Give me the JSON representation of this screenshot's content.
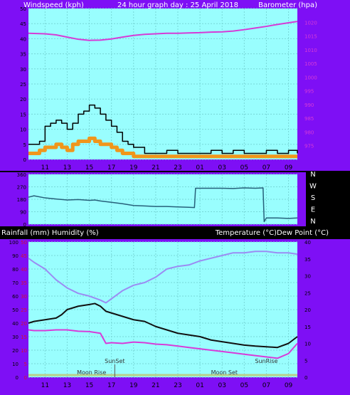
{
  "header": {
    "left_label": "Windspeed (kph)",
    "center_label": "24 hour graph day : 25 April 2018",
    "right_label": "Barometer (hpa)"
  },
  "mid_header": {
    "left_label": "Rainfall (mm)  Humidity (%)",
    "right_label": "Temperature (°C)Dew Point (°C)"
  },
  "compass": [
    "N",
    "W",
    "S",
    "E",
    "N"
  ],
  "x_ticks": [
    "11",
    "13",
    "15",
    "17",
    "19",
    "21",
    "23",
    "01",
    "03",
    "05",
    "07",
    "09"
  ],
  "colors": {
    "frame": "#7e0ff5",
    "plot_bg": "#99fefe",
    "grid": "#78d8d8",
    "barometer": "#d63bd6",
    "humidity": "#9b8cf3",
    "temperature": "#111111",
    "dewpoint": "#d83bd8",
    "wind_gust": "#000000",
    "wind_avg": "#f0961b",
    "wind_dir": "#27607a",
    "rain": "#b8d08a"
  },
  "chart_data": [
    {
      "type": "line",
      "title": "24 hour graph day : 25 April 2018",
      "x_ticks": [
        "11",
        "13",
        "15",
        "17",
        "19",
        "21",
        "23",
        "01",
        "03",
        "05",
        "07",
        "09"
      ],
      "left_axis": {
        "label": "Windspeed (kph)",
        "ylim": [
          0,
          50
        ],
        "ticks": [
          0,
          5,
          10,
          15,
          20,
          25,
          30,
          35,
          40,
          45,
          50
        ]
      },
      "right_axis": {
        "label": "Barometer (hpa)",
        "ylim": [
          970,
          1025
        ],
        "ticks": [
          975,
          980,
          985,
          990,
          995,
          1000,
          1005,
          1010,
          1015,
          1020
        ]
      },
      "series": [
        {
          "name": "Barometer",
          "axis": "right",
          "x": [
            9.5,
            11,
            12,
            13,
            14,
            15,
            16,
            17,
            18,
            19,
            20,
            21,
            22,
            23,
            24,
            25,
            26,
            27,
            28,
            29,
            30,
            31,
            32,
            33,
            33.8
          ],
          "values": [
            1016,
            1015.8,
            1015.4,
            1014.6,
            1013.8,
            1013.4,
            1013.5,
            1013.9,
            1014.6,
            1015.2,
            1015.6,
            1015.8,
            1016,
            1016,
            1016.1,
            1016.2,
            1016.4,
            1016.5,
            1016.8,
            1017.3,
            1017.9,
            1018.5,
            1019.2,
            1019.8,
            1020.3
          ]
        },
        {
          "name": "Wind gust",
          "axis": "left",
          "x": [
            9.5,
            10.5,
            11,
            11.5,
            12,
            12.5,
            13,
            13.5,
            14,
            14.5,
            15,
            15.5,
            16,
            16.5,
            17,
            17.5,
            18,
            18.5,
            19,
            20,
            21,
            22,
            23,
            24,
            25,
            26,
            27,
            28,
            29,
            30,
            31,
            32,
            33,
            33.8
          ],
          "values": [
            5,
            6,
            11,
            12,
            13,
            12,
            10,
            12,
            15,
            16,
            18,
            17,
            15,
            13,
            11,
            9,
            6,
            5,
            4,
            2,
            2,
            3,
            2,
            2,
            2,
            3,
            2,
            3,
            2,
            2,
            3,
            2,
            3,
            2
          ]
        },
        {
          "name": "Wind average",
          "axis": "left",
          "x": [
            9.5,
            10.5,
            11,
            11.5,
            12,
            12.5,
            13,
            13.5,
            14,
            14.5,
            15,
            15.5,
            16,
            16.5,
            17,
            17.5,
            18,
            18.5,
            19,
            20,
            21,
            22,
            23,
            24,
            25,
            26,
            27,
            28,
            29,
            30,
            31,
            32,
            33,
            33.8
          ],
          "values": [
            2,
            3,
            4,
            4,
            5,
            4,
            3,
            5,
            6,
            6,
            7,
            6,
            5,
            5,
            4,
            3,
            2,
            2,
            1,
            1,
            1,
            1,
            1,
            1,
            1,
            1,
            1,
            1,
            1,
            1,
            1,
            1,
            1,
            1
          ]
        }
      ]
    },
    {
      "type": "line",
      "left_axis": {
        "ylim": [
          0,
          360
        ],
        "ticks": [
          0,
          90,
          180,
          270,
          360
        ]
      },
      "series": [
        {
          "name": "Wind direction",
          "x": [
            9.5,
            10,
            11,
            12,
            13,
            14,
            15,
            15.5,
            16,
            17,
            18,
            19,
            20,
            21,
            22,
            23,
            24,
            24.5,
            24.6,
            27,
            28,
            29,
            30,
            30.7,
            30.8,
            31,
            32,
            33,
            33.8
          ],
          "values": [
            195,
            205,
            190,
            182,
            175,
            178,
            172,
            175,
            168,
            158,
            148,
            135,
            132,
            128,
            128,
            125,
            122,
            120,
            260,
            260,
            258,
            262,
            260,
            262,
            18,
            45,
            45,
            42,
            45
          ]
        }
      ]
    },
    {
      "type": "line",
      "x_ticks": [
        "11",
        "13",
        "15",
        "17",
        "19",
        "21",
        "23",
        "01",
        "03",
        "05",
        "07",
        "09"
      ],
      "left_axis": {
        "label": "Rainfall (mm)  Humidity (%)",
        "ylim": [
          0,
          100
        ],
        "ticks": [
          0,
          10,
          20,
          30,
          40,
          50,
          60,
          70,
          80,
          90,
          100
        ]
      },
      "left_inner_axis": {
        "ylim": [
          0,
          50
        ],
        "ticks": [
          0,
          5,
          10,
          15,
          20,
          25,
          30,
          35,
          40,
          45,
          50
        ]
      },
      "right_axis": {
        "label": "Temperature (°C)Dew Point (°C)",
        "ylim": [
          0,
          40
        ],
        "ticks": [
          0,
          5,
          10,
          15,
          20,
          25,
          30,
          35,
          40
        ]
      },
      "series": [
        {
          "name": "Humidity",
          "axis": "left",
          "x": [
            9.5,
            10,
            11,
            12,
            13,
            14,
            15,
            16,
            16.5,
            17,
            18,
            19,
            20,
            21,
            22,
            23,
            24,
            25,
            26,
            27,
            28,
            29,
            30,
            31,
            32,
            33,
            33.8
          ],
          "values": [
            88,
            85,
            80,
            72,
            66,
            62,
            60,
            57,
            55,
            58,
            64,
            68,
            70,
            74,
            80,
            82,
            83,
            86,
            88,
            90,
            92,
            92,
            93,
            93,
            92,
            92,
            91
          ]
        },
        {
          "name": "Temperature",
          "axis": "right",
          "x": [
            9.5,
            10,
            11,
            12,
            12.5,
            13,
            14,
            15,
            15.5,
            16,
            16.5,
            17,
            18,
            19,
            20,
            21,
            22,
            23,
            24,
            25,
            26,
            27,
            28,
            29,
            30,
            31,
            32,
            33,
            33.8
          ],
          "values": [
            16,
            16.5,
            17,
            17.5,
            18.5,
            20,
            21,
            21.5,
            21.8,
            21,
            19.5,
            19,
            18,
            17,
            16.5,
            15,
            14,
            13,
            12.5,
            12,
            11,
            10.5,
            10,
            9.5,
            9.2,
            9,
            8.8,
            10,
            12
          ]
        },
        {
          "name": "Dew point",
          "axis": "right",
          "x": [
            9.5,
            10,
            11,
            12,
            13,
            14,
            15,
            16,
            16.5,
            17,
            18,
            19,
            20,
            21,
            22,
            23,
            24,
            25,
            26,
            27,
            28,
            29,
            30,
            31,
            32,
            33,
            33.8
          ],
          "values": [
            14,
            13.8,
            13.8,
            14,
            14,
            13.6,
            13.5,
            13,
            10,
            10.2,
            10,
            10.4,
            10.2,
            9.8,
            9.6,
            9.2,
            8.8,
            8.4,
            8,
            7.6,
            7.2,
            6.8,
            6.4,
            6,
            5.6,
            7,
            10
          ]
        }
      ],
      "annotations": [
        {
          "label": "SunSet",
          "x": 17.3
        },
        {
          "label": "Moon Rise",
          "x": 15.2
        },
        {
          "label": "Moon Set",
          "x": 27.2
        },
        {
          "label": "SunRise",
          "x": 31.0
        }
      ]
    }
  ]
}
